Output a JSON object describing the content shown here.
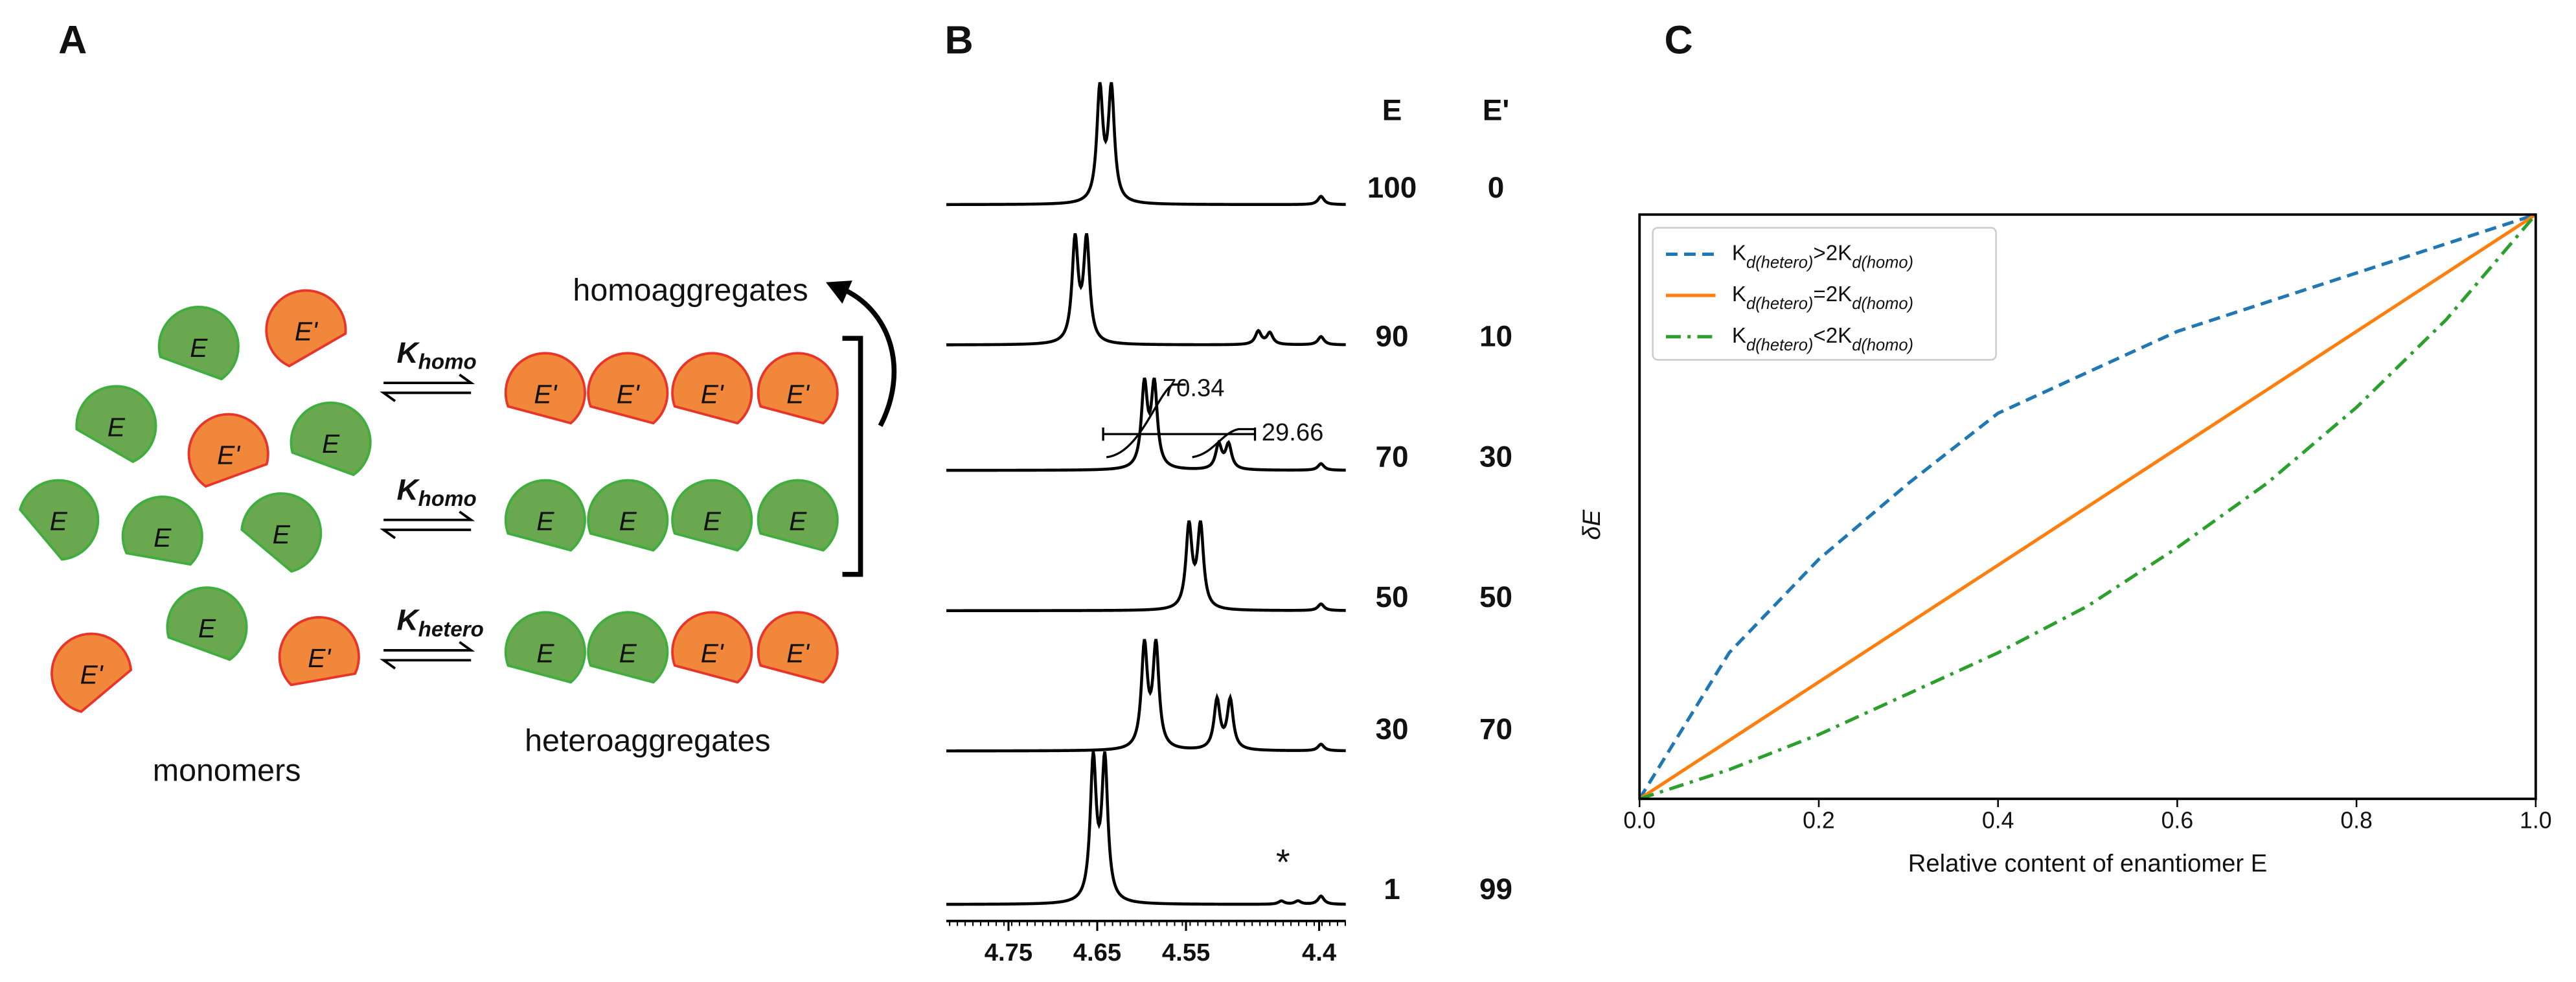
{
  "panel_labels": [
    "A",
    "B",
    "C"
  ],
  "panel_a": {
    "monomers": [
      "E",
      "E'",
      "E",
      "E'",
      "E",
      "E",
      "E",
      "E",
      "E",
      "E'",
      "E'"
    ],
    "monomers_label": "monomers",
    "homoaggregates_label": "homoaggregates",
    "heteroaggregates_label": "heteroaggregates",
    "rate_constants": [
      {
        "symbol": "K",
        "subscript": "homo"
      },
      {
        "symbol": "K",
        "subscript": "homo"
      },
      {
        "symbol": "K",
        "subscript": "hetero"
      }
    ],
    "homo_rows": [
      [
        "E'",
        "E'",
        "E'",
        "E'"
      ],
      [
        "E",
        "E",
        "E",
        "E"
      ]
    ],
    "hetero_row": [
      "E",
      "E",
      "E'",
      "E'"
    ]
  },
  "panel_b": {
    "column_headers": [
      "E",
      "E'"
    ],
    "ratios": [
      [
        100,
        0
      ],
      [
        90,
        10
      ],
      [
        70,
        30
      ],
      [
        50,
        50
      ],
      [
        30,
        70
      ],
      [
        1,
        99
      ]
    ],
    "integrals": [
      70.34,
      29.66
    ],
    "impurity_mark": "*",
    "xlim": [
      4.82,
      4.37
    ],
    "xticks": [
      4.75,
      4.65,
      4.55,
      4.4
    ]
  },
  "chart_data": {
    "type": "line",
    "xlabel": "Relative content of enantiomer E",
    "ylabel": "δE",
    "x": [
      0,
      0.1,
      0.2,
      0.3,
      0.4,
      0.5,
      0.6,
      0.7,
      0.8,
      0.9,
      1
    ],
    "series": [
      {
        "name": "Kd(hetero)>2Kd(homo)",
        "color": "#1f77b4",
        "dash": "dashed",
        "values": [
          0,
          0.25,
          0.41,
          0.54,
          0.66,
          0.73,
          0.8,
          0.85,
          0.9,
          0.95,
          1
        ]
      },
      {
        "name": "Kd(hetero)=2Kd(homo)",
        "color": "#ff7f0e",
        "dash": "solid",
        "values": [
          0,
          0.1,
          0.2,
          0.3,
          0.4,
          0.5,
          0.6,
          0.7,
          0.8,
          0.9,
          1
        ]
      },
      {
        "name": "Kd(hetero)<2Kd(homo)",
        "color": "#2ca02c",
        "dash": "dashdot",
        "values": [
          0,
          0.05,
          0.11,
          0.18,
          0.25,
          0.33,
          0.43,
          0.54,
          0.67,
          0.82,
          1
        ]
      }
    ],
    "xlim": [
      0,
      1
    ],
    "ylim": [
      0,
      1
    ],
    "xticks": [
      {
        "value": 0,
        "label": "0.0"
      },
      0.2,
      0.4,
      0.6,
      0.8,
      {
        "value": 1,
        "label": "1.0"
      }
    ],
    "yticks": [],
    "legend": "upper left",
    "grid": false
  }
}
